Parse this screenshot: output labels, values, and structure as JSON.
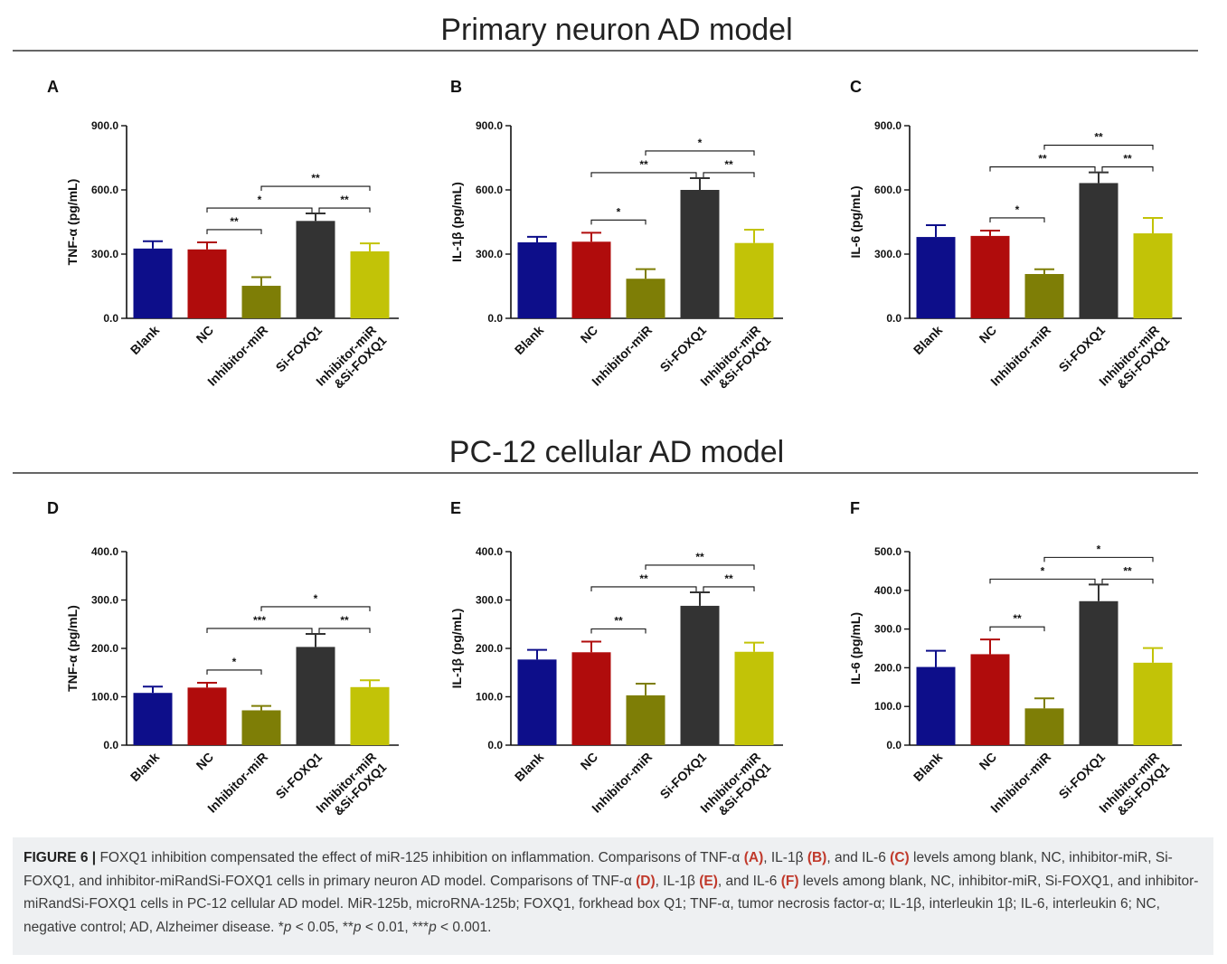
{
  "section_titles": [
    "Primary neuron AD model",
    "PC-12 cellular AD model"
  ],
  "category_labels": [
    "Blank",
    "NC",
    "Inhibitor-miR",
    "Si-FOXQ1",
    "Inhibitor-miR\n&Si-FOXQ1"
  ],
  "colors": {
    "Blank": "#0d0e8a",
    "NC": "#b00c0c",
    "Inhibitor-miR": "#7e7e06",
    "Si-FOXQ1": "#333333",
    "Inhibitor-miR&Si-FOXQ1": "#c2c307"
  },
  "chart_data": [
    {
      "panel": "A",
      "type": "bar",
      "ylabel": "TNF-α (pg/mL)",
      "categories": [
        "Blank",
        "NC",
        "Inhibitor-miR",
        "Si-FOXQ1",
        "Inhibitor-miR&Si-FOXQ1"
      ],
      "values": [
        326,
        322,
        152,
        455,
        313
      ],
      "errors": [
        34,
        33,
        40,
        35,
        37
      ],
      "ylim": [
        0,
        900
      ],
      "yticks": [
        "0.0",
        "300.0",
        "600.0",
        "900.0"
      ],
      "significance": [
        {
          "from": 1,
          "to": 2,
          "label": "**"
        },
        {
          "from": 1,
          "to": 3,
          "label": "*"
        },
        {
          "from": 3,
          "to": 4,
          "label": "**"
        },
        {
          "from": 2,
          "to": 4,
          "label": "**"
        }
      ]
    },
    {
      "panel": "B",
      "type": "bar",
      "ylabel": "IL-1β (pg/mL)",
      "categories": [
        "Blank",
        "NC",
        "Inhibitor-miR",
        "Si-FOXQ1",
        "Inhibitor-miR&Si-FOXQ1"
      ],
      "values": [
        355,
        358,
        185,
        600,
        352
      ],
      "errors": [
        26,
        42,
        45,
        55,
        62
      ],
      "ylim": [
        0,
        900
      ],
      "yticks": [
        "0.0",
        "300.0",
        "600.0",
        "900.0"
      ],
      "significance": [
        {
          "from": 1,
          "to": 2,
          "label": "*"
        },
        {
          "from": 1,
          "to": 3,
          "label": "**"
        },
        {
          "from": 3,
          "to": 4,
          "label": "**"
        },
        {
          "from": 2,
          "to": 4,
          "label": "*"
        }
      ]
    },
    {
      "panel": "C",
      "type": "bar",
      "ylabel": "IL-6 (pg/mL)",
      "categories": [
        "Blank",
        "NC",
        "Inhibitor-miR",
        "Si-FOXQ1",
        "Inhibitor-miR&Si-FOXQ1"
      ],
      "values": [
        380,
        385,
        207,
        632,
        397
      ],
      "errors": [
        55,
        25,
        22,
        50,
        72
      ],
      "ylim": [
        0,
        900
      ],
      "yticks": [
        "0.0",
        "300.0",
        "600.0",
        "900.0"
      ],
      "significance": [
        {
          "from": 1,
          "to": 2,
          "label": "*"
        },
        {
          "from": 1,
          "to": 3,
          "label": "**"
        },
        {
          "from": 3,
          "to": 4,
          "label": "**"
        },
        {
          "from": 2,
          "to": 4,
          "label": "**"
        }
      ]
    },
    {
      "panel": "D",
      "type": "bar",
      "ylabel": "TNF-α (pg/mL)",
      "categories": [
        "Blank",
        "NC",
        "Inhibitor-miR",
        "Si-FOXQ1",
        "Inhibitor-miR&Si-FOXQ1"
      ],
      "values": [
        108,
        119,
        72,
        203,
        120
      ],
      "errors": [
        13,
        10,
        9,
        27,
        14
      ],
      "ylim": [
        0,
        400
      ],
      "yticks": [
        "0.0",
        "100.0",
        "200.0",
        "300.0",
        "400.0"
      ],
      "significance": [
        {
          "from": 1,
          "to": 2,
          "label": "*"
        },
        {
          "from": 1,
          "to": 3,
          "label": "***"
        },
        {
          "from": 3,
          "to": 4,
          "label": "**"
        },
        {
          "from": 2,
          "to": 4,
          "label": "*"
        }
      ]
    },
    {
      "panel": "E",
      "type": "bar",
      "ylabel": "IL-1β (pg/mL)",
      "categories": [
        "Blank",
        "NC",
        "Inhibitor-miR",
        "Si-FOXQ1",
        "Inhibitor-miR&Si-FOXQ1"
      ],
      "values": [
        177,
        192,
        103,
        288,
        193
      ],
      "errors": [
        20,
        22,
        24,
        28,
        19
      ],
      "ylim": [
        0,
        400
      ],
      "yticks": [
        "0.0",
        "100.0",
        "200.0",
        "300.0",
        "400.0"
      ],
      "significance": [
        {
          "from": 1,
          "to": 2,
          "label": "**"
        },
        {
          "from": 1,
          "to": 3,
          "label": "**"
        },
        {
          "from": 3,
          "to": 4,
          "label": "**"
        },
        {
          "from": 2,
          "to": 4,
          "label": "**"
        }
      ]
    },
    {
      "panel": "F",
      "type": "bar",
      "ylabel": "IL-6 (pg/mL)",
      "categories": [
        "Blank",
        "NC",
        "Inhibitor-miR",
        "Si-FOXQ1",
        "Inhibitor-miR&Si-FOXQ1"
      ],
      "values": [
        202,
        235,
        95,
        372,
        213
      ],
      "errors": [
        42,
        38,
        26,
        43,
        38
      ],
      "ylim": [
        0,
        500
      ],
      "yticks": [
        "0.0",
        "100.0",
        "200.0",
        "300.0",
        "400.0",
        "500.0"
      ],
      "significance": [
        {
          "from": 1,
          "to": 2,
          "label": "**"
        },
        {
          "from": 1,
          "to": 3,
          "label": "*"
        },
        {
          "from": 3,
          "to": 4,
          "label": "**"
        },
        {
          "from": 2,
          "to": 4,
          "label": "*"
        }
      ]
    }
  ],
  "caption": {
    "figure_label": "FIGURE 6 |",
    "s1": "FOXQ1 inhibition compensated the effect of miR-125 inhibition on inflammation. Comparisons of TNF-α",
    "ref_a": "(A)",
    "s2": ", IL-1β",
    "ref_b": "(B)",
    "s3": ", and IL-6",
    "ref_c": "(C)",
    "s4": "levels among blank, NC, inhibitor-miR, Si-FOXQ1, and inhibitor-miRandSi-FOXQ1 cells in primary neuron AD model. Comparisons of TNF-α",
    "ref_d": "(D)",
    "s5": ", IL-1β",
    "ref_e": "(E)",
    "s6": ", and IL-6",
    "ref_f": "(F)",
    "s7": "levels among blank, NC, inhibitor-miR, Si-FOXQ1, and inhibitor-miRandSi-FOXQ1 cells in PC-12 cellular AD model. MiR-125b, microRNA-125b; FOXQ1, forkhead box Q1; TNF-α, tumor necrosis factor-α; IL-1β, interleukin 1β; IL-6, interleukin 6; NC, negative control; AD, Alzheimer disease. *",
    "p1": "p",
    "s8": " < 0.05, **",
    "p2": "p",
    "s9": " < 0.01, ***",
    "p3": "p",
    "s10": " < 0.001."
  }
}
